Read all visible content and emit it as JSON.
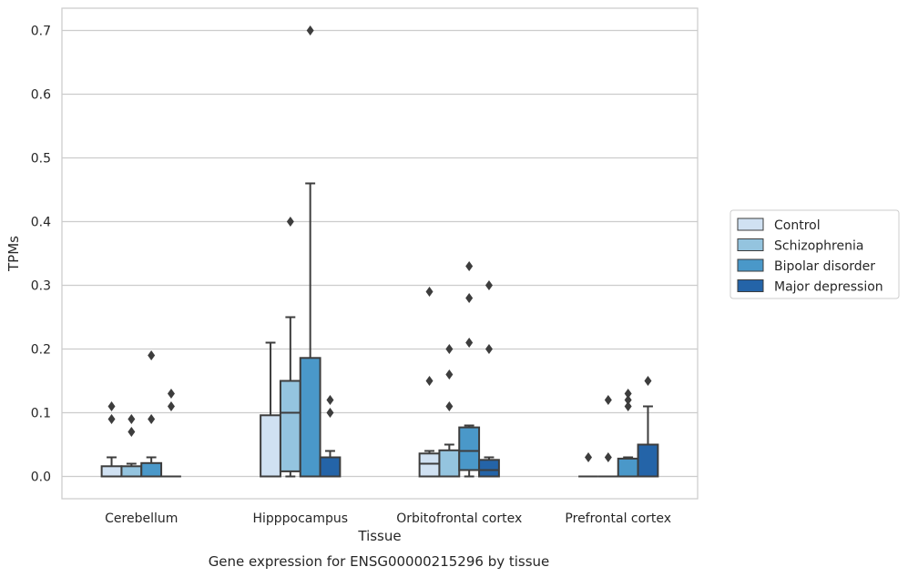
{
  "chart_data": {
    "type": "box",
    "xlabel": "Tissue",
    "ylabel": "TPMs",
    "caption": "Gene expression for ENSG00000215296 by tissue",
    "ylim": [
      -0.035,
      0.735
    ],
    "yticks": [
      "0.0",
      "0.1",
      "0.2",
      "0.3",
      "0.4",
      "0.5",
      "0.6",
      "0.7"
    ],
    "grid": "horizontal",
    "legend_position": "right",
    "categories": [
      "Cerebellum",
      "Hipppocampus",
      "Orbitofrontal cortex",
      "Prefrontal cortex"
    ],
    "series": [
      {
        "name": "Control",
        "color": "#d0e1f2",
        "boxes": [
          {
            "q1": 0.0,
            "median": 0.0,
            "q3": 0.016,
            "whislo": 0.0,
            "whishi": 0.03,
            "fliers": [
              0.09,
              0.11
            ]
          },
          {
            "q1": 0.0,
            "median": 0.0,
            "q3": 0.096,
            "whislo": 0.0,
            "whishi": 0.21,
            "fliers": []
          },
          {
            "q1": 0.0,
            "median": 0.02,
            "q3": 0.036,
            "whislo": 0.0,
            "whishi": 0.04,
            "fliers": [
              0.15,
              0.29
            ]
          },
          {
            "q1": 0.0,
            "median": 0.0,
            "q3": 0.0,
            "whislo": 0.0,
            "whishi": 0.0,
            "fliers": [
              0.03
            ]
          }
        ]
      },
      {
        "name": "Schizophrenia",
        "color": "#94c4df",
        "boxes": [
          {
            "q1": 0.0,
            "median": 0.0,
            "q3": 0.016,
            "whislo": 0.0,
            "whishi": 0.02,
            "fliers": [
              0.07,
              0.09
            ]
          },
          {
            "q1": 0.008,
            "median": 0.1,
            "q3": 0.15,
            "whislo": 0.0,
            "whishi": 0.25,
            "fliers": [
              0.4
            ]
          },
          {
            "q1": 0.0,
            "median": 0.0,
            "q3": 0.041,
            "whislo": 0.0,
            "whishi": 0.05,
            "fliers": [
              0.11,
              0.16,
              0.2
            ]
          },
          {
            "q1": 0.0,
            "median": 0.0,
            "q3": 0.0,
            "whislo": 0.0,
            "whishi": 0.0,
            "fliers": [
              0.03,
              0.12
            ]
          }
        ]
      },
      {
        "name": "Bipolar disorder",
        "color": "#4a98c9",
        "boxes": [
          {
            "q1": 0.0,
            "median": 0.0,
            "q3": 0.021,
            "whislo": 0.0,
            "whishi": 0.03,
            "fliers": [
              0.09,
              0.19
            ]
          },
          {
            "q1": 0.0,
            "median": 0.0,
            "q3": 0.186,
            "whislo": 0.0,
            "whishi": 0.46,
            "fliers": [
              0.7
            ]
          },
          {
            "q1": 0.01,
            "median": 0.04,
            "q3": 0.077,
            "whislo": 0.0,
            "whishi": 0.08,
            "fliers": [
              0.21,
              0.28,
              0.33
            ]
          },
          {
            "q1": 0.0,
            "median": 0.0,
            "q3": 0.028,
            "whislo": 0.0,
            "whishi": 0.03,
            "fliers": [
              0.11,
              0.12,
              0.13
            ]
          }
        ]
      },
      {
        "name": "Major depression",
        "color": "#2464a8",
        "boxes": [
          {
            "q1": 0.0,
            "median": 0.0,
            "q3": 0.0,
            "whislo": 0.0,
            "whishi": 0.0,
            "fliers": [
              0.11,
              0.13
            ]
          },
          {
            "q1": 0.0,
            "median": 0.0,
            "q3": 0.03,
            "whislo": 0.0,
            "whishi": 0.04,
            "fliers": [
              0.1,
              0.12
            ]
          },
          {
            "q1": 0.0,
            "median": 0.01,
            "q3": 0.026,
            "whislo": 0.0,
            "whishi": 0.03,
            "fliers": [
              0.2,
              0.3
            ]
          },
          {
            "q1": 0.0,
            "median": 0.0,
            "q3": 0.05,
            "whislo": 0.0,
            "whishi": 0.11,
            "fliers": [
              0.15
            ]
          }
        ]
      }
    ]
  }
}
